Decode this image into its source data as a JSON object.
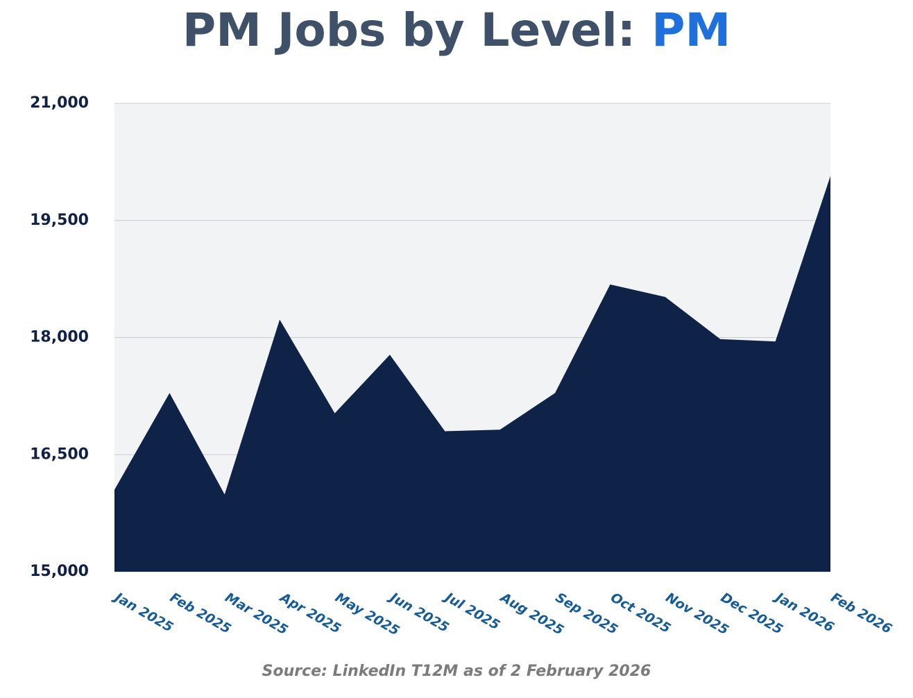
{
  "chart_data": {
    "type": "area",
    "title": "PM Jobs by Level:",
    "title_highlight": "PM",
    "source": "Source: LinkedIn T12M as of 2 February 2026",
    "categories": [
      "Jan 2025",
      "Feb 2025",
      "Mar 2025",
      "Apr 2025",
      "May 2025",
      "Jun 2025",
      "Jul 2025",
      "Aug 2025",
      "Sep 2025",
      "Oct 2025",
      "Nov 2025",
      "Dec 2025",
      "Jan 2026",
      "Feb 2026"
    ],
    "values": [
      16050,
      17290,
      15990,
      18230,
      17030,
      17780,
      16800,
      16820,
      17290,
      18680,
      18520,
      17980,
      17950,
      20070
    ],
    "color": "#0f2349",
    "ylim": [
      15000,
      21000
    ],
    "yticks": [
      {
        "value": 15000,
        "label": "15,000"
      },
      {
        "value": 16500,
        "label": "16,500"
      },
      {
        "value": 18000,
        "label": "18,000"
      },
      {
        "value": 19500,
        "label": "19,500"
      },
      {
        "value": 21000,
        "label": "21,000"
      }
    ],
    "grid": true
  }
}
